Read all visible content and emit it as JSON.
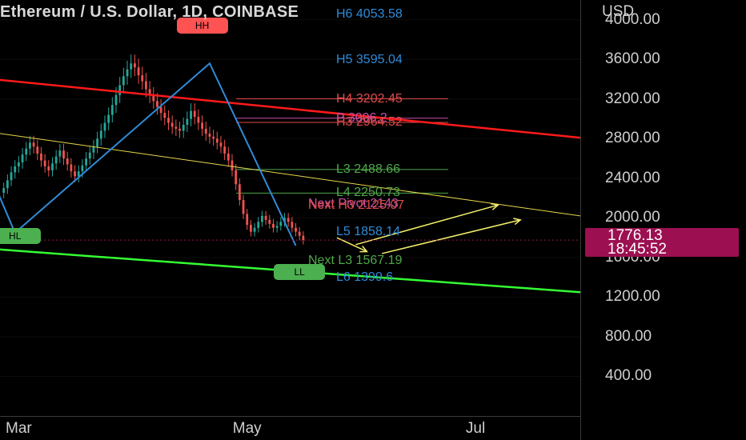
{
  "header": {
    "title": "Ethereum / U.S. Dollar, 1D, COINBASE",
    "currency": "USD"
  },
  "colors": {
    "up": "#26a69a",
    "down": "#ef5350",
    "channel_top": "#ff1a1a",
    "channel_bottom": "#33ff33",
    "midline": "#e6d84a",
    "zigzag": "#2f8bd8",
    "projection": "#f3ef6b",
    "price_label": "#9c1051"
  },
  "price": {
    "value": "1776.13",
    "countdown": "18:45:52"
  },
  "levels": [
    {
      "label": "H6 4053.58",
      "value": 4053.58,
      "color": "#2f8bd8"
    },
    {
      "label": "H5 3595.04",
      "value": 3595.04,
      "color": "#2f8bd8"
    },
    {
      "label": "H4 3202.45",
      "value": 3202.45,
      "color": "#e04a4a"
    },
    {
      "label": "P 3006.2",
      "value": 3006.2,
      "color": "#c84fa8"
    },
    {
      "label": "H3 2964.52",
      "value": 2964.52,
      "color": "#e04a4a"
    },
    {
      "label": "L3 2488.66",
      "value": 2488.66,
      "color": "#4fa84a"
    },
    {
      "label": "L4 2250.73",
      "value": 2250.73,
      "color": "#4fa84a"
    },
    {
      "label": "Next Pivot 2143",
      "value": 2143,
      "color": "#c84fa8"
    },
    {
      "label": "Next H3 2125.07",
      "value": 2125.07,
      "color": "#e04a4a"
    },
    {
      "label": "L5 1858.14",
      "value": 1858.14,
      "color": "#2f8bd8"
    },
    {
      "label": "Next L3 1567.19",
      "value": 1567.19,
      "color": "#4fa84a"
    },
    {
      "label": "L6 1399.6",
      "value": 1399.6,
      "color": "#2f8bd8"
    }
  ],
  "badges": [
    {
      "label": "HH",
      "color": "#ff5252",
      "date": "2021-04-19",
      "price": 3940
    },
    {
      "label": "HL",
      "color": "#4caf50",
      "date": "2021-02-28",
      "price": 1820
    },
    {
      "label": "LL",
      "color": "#4caf50",
      "date": "2021-05-15",
      "price": 1450
    }
  ],
  "chart_data": {
    "type": "candlestick",
    "title": "Ethereum / U.S. Dollar, 1D, COINBASE",
    "ylabel": "USD",
    "ylim": [
      0,
      4200
    ],
    "xlim": [
      "2021-02-24",
      "2021-07-29"
    ],
    "yticks": [
      {
        "label": "4000.00",
        "value": 4000
      },
      {
        "label": "3600.00",
        "value": 3600
      },
      {
        "label": "3200.00",
        "value": 3200
      },
      {
        "label": "2800.00",
        "value": 2800
      },
      {
        "label": "2400.00",
        "value": 2400
      },
      {
        "label": "2000.00",
        "value": 2000
      },
      {
        "label": "1600.00",
        "value": 1600
      },
      {
        "label": "1200.00",
        "value": 1200
      },
      {
        "label": "800.00",
        "value": 800
      },
      {
        "label": "400.00",
        "value": 400
      }
    ],
    "xticks": [
      {
        "label": "Mar",
        "date": "2021-03-01"
      },
      {
        "label": "May",
        "date": "2021-05-01"
      },
      {
        "label": "Jul",
        "date": "2021-07-01"
      }
    ],
    "close_series": {
      "start": "2021-02-25",
      "values": [
        2300,
        2380,
        2460,
        2520,
        2560,
        2640,
        2700,
        2760,
        2720,
        2650,
        2580,
        2520,
        2480,
        2550,
        2620,
        2680,
        2600,
        2540,
        2470,
        2420,
        2470,
        2530,
        2600,
        2660,
        2720,
        2800,
        2880,
        2960,
        3040,
        3140,
        3240,
        3340,
        3430,
        3500,
        3560,
        3520,
        3440,
        3380,
        3300,
        3240,
        3180,
        3120,
        3060,
        3010,
        2960,
        2920,
        2900,
        2880,
        2940,
        3000,
        3080,
        3020,
        2960,
        2900,
        2850,
        2820,
        2800,
        2760,
        2720,
        2650,
        2580,
        2480,
        2340,
        2180,
        2040,
        1930,
        1860,
        1900,
        1960,
        2020,
        1980,
        1940,
        1900,
        1920,
        1960,
        2000,
        1960,
        1900,
        1860,
        1820,
        1776.13
      ]
    },
    "channels": [
      {
        "name": "",
        "from": {
          "date": "2021-02-17",
          "value": 3420
        },
        "to": {
          "date": "2021-07-29",
          "value": 2810
        }
      },
      {
        "name": "",
        "from": {
          "date": "2021-02-17",
          "value": 2890
        },
        "to": {
          "date": "2021-07-29",
          "value": 2020
        }
      },
      {
        "name": "",
        "from": {
          "date": "2021-02-17",
          "value": 1700
        },
        "to": {
          "date": "2021-07-29",
          "value": 1250
        }
      }
    ],
    "zigzag": [
      {
        "date": "2021-02-28",
        "value": 1850
      },
      {
        "date": "2021-04-21",
        "value": 3560
      },
      {
        "date": "2021-05-14",
        "value": 1720
      }
    ],
    "projections": [
      {
        "from": {
          "date": "2021-05-25",
          "value": 1800
        },
        "to": {
          "date": "2021-06-02",
          "value": 1660
        }
      },
      {
        "from": {
          "date": "2021-05-30",
          "value": 1730
        },
        "to": {
          "date": "2021-07-07",
          "value": 2130
        }
      },
      {
        "from": {
          "date": "2021-06-06",
          "value": 1640
        },
        "to": {
          "date": "2021-07-13",
          "value": 1980
        }
      }
    ],
    "last_price": 1776.13
  }
}
